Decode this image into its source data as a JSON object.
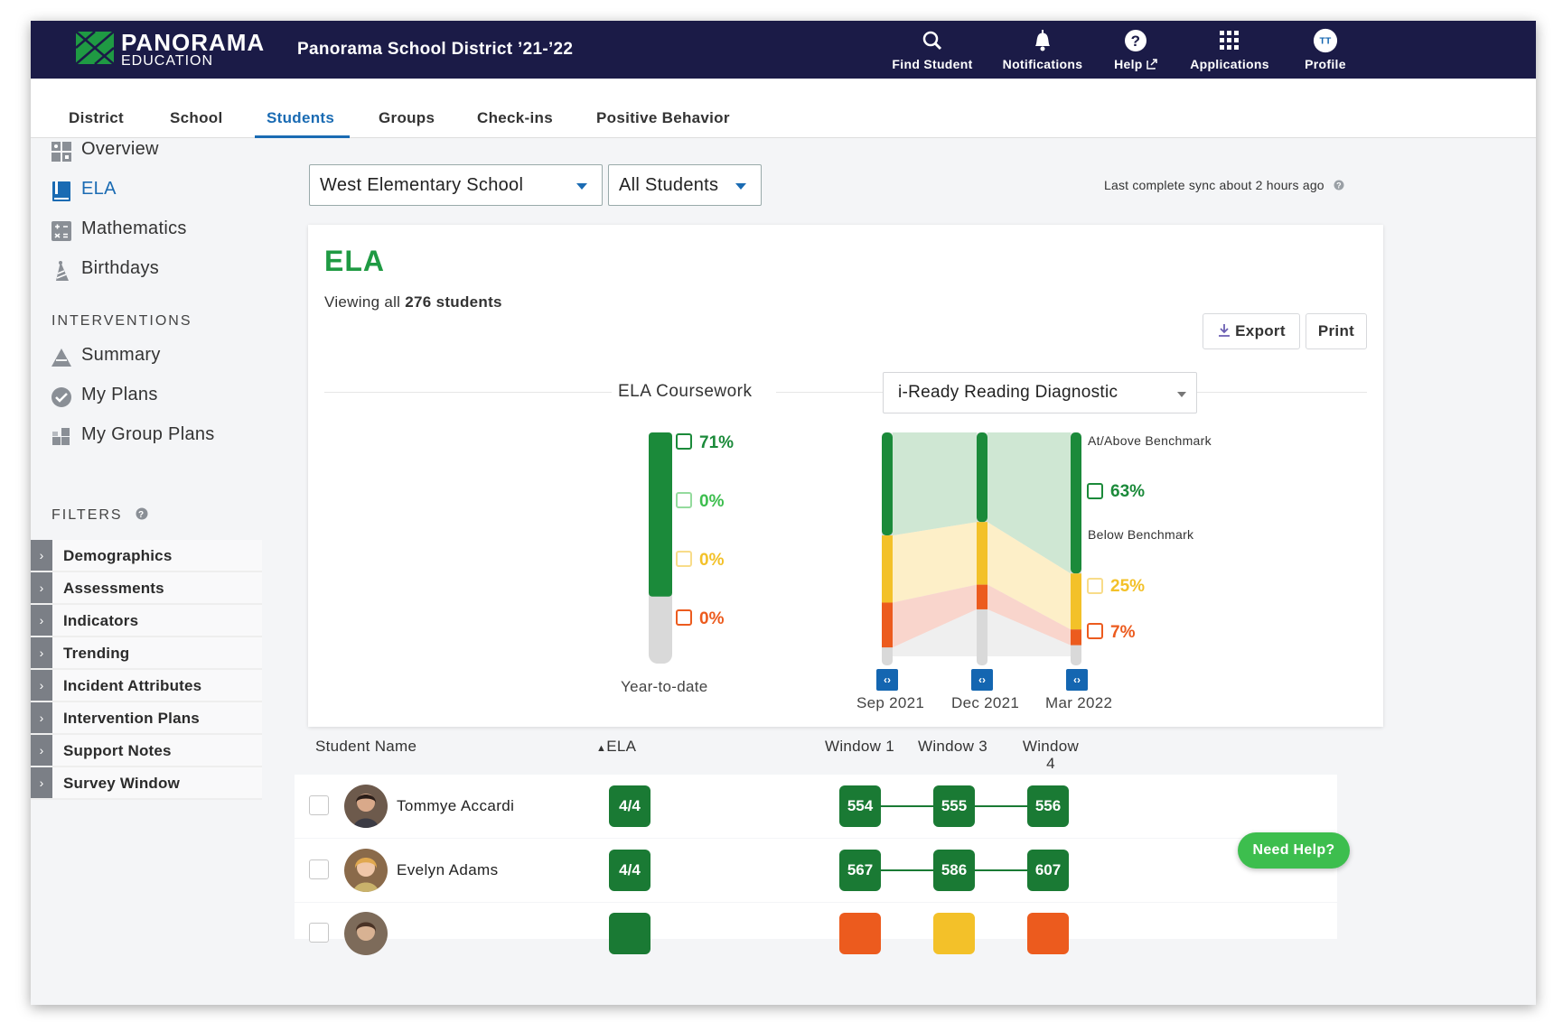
{
  "header": {
    "brand_name": "PANORAMA",
    "brand_sub": "EDUCATION",
    "district": "Panorama School District ’21-’22",
    "nav": [
      {
        "label": "Find Student",
        "icon": "search-icon"
      },
      {
        "label": "Notifications",
        "icon": "bell-icon"
      },
      {
        "label": "Help",
        "icon": "question-icon"
      },
      {
        "label": "Applications",
        "icon": "grid-icon"
      },
      {
        "label": "Profile",
        "icon": "avatar-initials",
        "initials": "TT"
      }
    ]
  },
  "tabs": [
    "District",
    "School",
    "Students",
    "Groups",
    "Check-ins",
    "Positive Behavior"
  ],
  "active_tab": "Students",
  "sidebar": {
    "links": [
      {
        "label": "Overview",
        "icon": "overview-icon"
      },
      {
        "label": "ELA",
        "icon": "book-icon",
        "active": true
      },
      {
        "label": "Mathematics",
        "icon": "calculator-icon"
      },
      {
        "label": "Birthdays",
        "icon": "party-hat-icon"
      }
    ],
    "interventions_heading": "INTERVENTIONS",
    "interventions": [
      {
        "label": "Summary",
        "icon": "triangle-icon"
      },
      {
        "label": "My Plans",
        "icon": "check-circle-icon"
      },
      {
        "label": "My Group Plans",
        "icon": "blocks-icon"
      }
    ],
    "filters_heading": "FILTERS",
    "filters": [
      "Demographics",
      "Assessments",
      "Indicators",
      "Trending",
      "Incident Attributes",
      "Intervention Plans",
      "Support Notes",
      "Survey Window"
    ]
  },
  "controls": {
    "school_select": "West Elementary School",
    "student_select": "All Students",
    "sync_text": "Last complete sync about 2 hours ago"
  },
  "card": {
    "title": "ELA",
    "viewing_prefix": "Viewing all ",
    "viewing_count": "276 students",
    "export_label": "Export",
    "print_label": "Print",
    "coursework_title": "ELA Coursework",
    "assessment_select": "i-Ready Reading Diagnostic"
  },
  "chart_data": [
    {
      "type": "bar",
      "title": "ELA Coursework",
      "xlabel": "Year-to-date",
      "categories": [
        "Year-to-date"
      ],
      "series": [
        {
          "values": [
            71
          ],
          "color": "#1b8a3a"
        },
        {
          "values": [
            0
          ],
          "color": "#3dbe4e"
        },
        {
          "values": [
            0
          ],
          "color": "#f3c129"
        },
        {
          "values": [
            0
          ],
          "color": "#ec5b1e"
        }
      ],
      "labels": [
        "71%",
        "0%",
        "0%",
        "0%"
      ]
    },
    {
      "type": "area",
      "title": "i-Ready Reading Diagnostic",
      "categories": [
        "Sep 2021",
        "Dec 2021",
        "Mar 2022"
      ],
      "series": [
        {
          "name": "At/Above Benchmark",
          "values": [
            46,
            40,
            63
          ],
          "color": "#1b8a3a"
        },
        {
          "name": "Below Benchmark",
          "values": [
            30,
            28,
            25
          ],
          "color": "#f3c129"
        },
        {
          "values": [
            20,
            11,
            7
          ],
          "color": "#ec5b1e"
        }
      ],
      "labels": [
        "63%",
        "25%",
        "7%"
      ]
    }
  ],
  "table": {
    "headers": [
      "Student Name",
      "ELA",
      "Window 1",
      "Window 3",
      "Window 4"
    ],
    "rows": [
      {
        "name": "Tommye Accardi",
        "ela": "4/4",
        "scores": [
          "554",
          "555",
          "556"
        ]
      },
      {
        "name": "Evelyn Adams",
        "ela": "4/4",
        "scores": [
          "567",
          "586",
          "607"
        ]
      }
    ]
  },
  "need_help": "Need Help?"
}
